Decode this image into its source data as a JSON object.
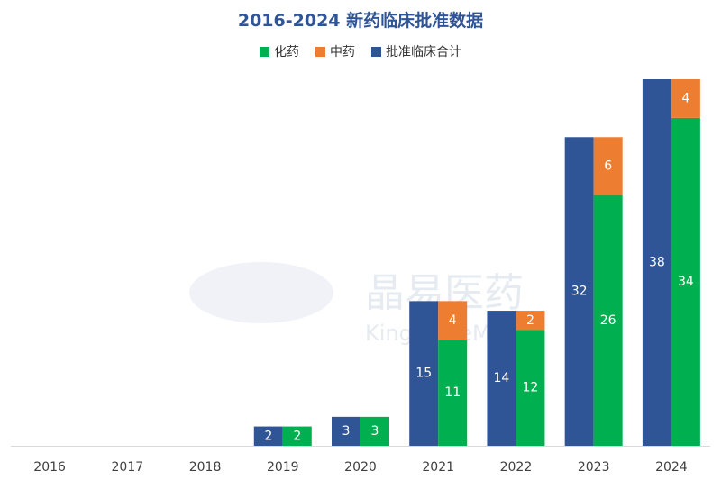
{
  "chart_data": {
    "type": "bar",
    "title": "2016-2024 新药临床批准数据",
    "categories": [
      "2016",
      "2017",
      "2018",
      "2019",
      "2020",
      "2021",
      "2022",
      "2023",
      "2024"
    ],
    "series": [
      {
        "name": "批准临床合计",
        "values": [
          0,
          0,
          0,
          2,
          3,
          15,
          14,
          32,
          38
        ],
        "color": "#2f5597"
      },
      {
        "name": "化药",
        "values": [
          0,
          0,
          0,
          2,
          3,
          11,
          12,
          26,
          34
        ],
        "color": "#00b050"
      },
      {
        "name": "中药",
        "values": [
          0,
          0,
          0,
          0,
          0,
          4,
          2,
          6,
          4
        ],
        "color": "#ed7d31"
      }
    ],
    "stacked_series": [
      "化药",
      "中药"
    ],
    "legend_order": [
      "化药",
      "中药",
      "批准临床合计"
    ],
    "legend_position": "top",
    "ylim": [
      0,
      38
    ],
    "grid": false
  },
  "watermark": {
    "text_cn": "晶易医药",
    "text_en": "KingeagleMed"
  }
}
